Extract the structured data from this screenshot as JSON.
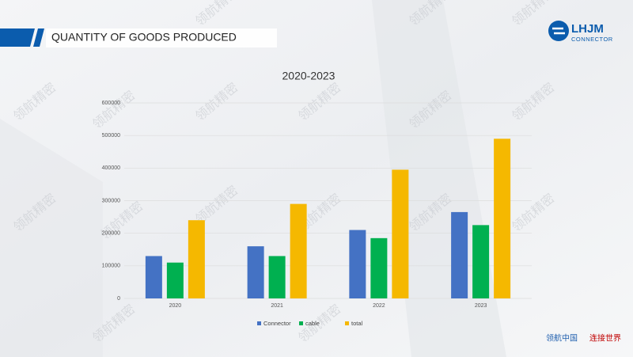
{
  "header": {
    "title": "QUANTITY OF GOODS PRODUCED"
  },
  "logo": {
    "name": "LHJM",
    "subtitle": "CONNECTOR"
  },
  "watermark": "领航精密",
  "footer": {
    "left": "领航中国",
    "right": "连接世界"
  },
  "chart_data": {
    "type": "bar",
    "title": "2020-2023",
    "categories": [
      "2020",
      "2021",
      "2022",
      "2023"
    ],
    "series": [
      {
        "name": "Connector",
        "color": "#4472c4",
        "values": [
          130000,
          160000,
          210000,
          265000
        ]
      },
      {
        "name": "cable",
        "color": "#00b050",
        "values": [
          110000,
          130000,
          185000,
          225000
        ]
      },
      {
        "name": "total",
        "color": "#f5b800",
        "values": [
          240000,
          290000,
          395000,
          490000
        ]
      }
    ],
    "ylim": [
      0,
      600000
    ],
    "yticks": [
      0,
      100000,
      200000,
      300000,
      400000,
      500000,
      600000
    ],
    "grid": true,
    "legend": "bottom"
  }
}
